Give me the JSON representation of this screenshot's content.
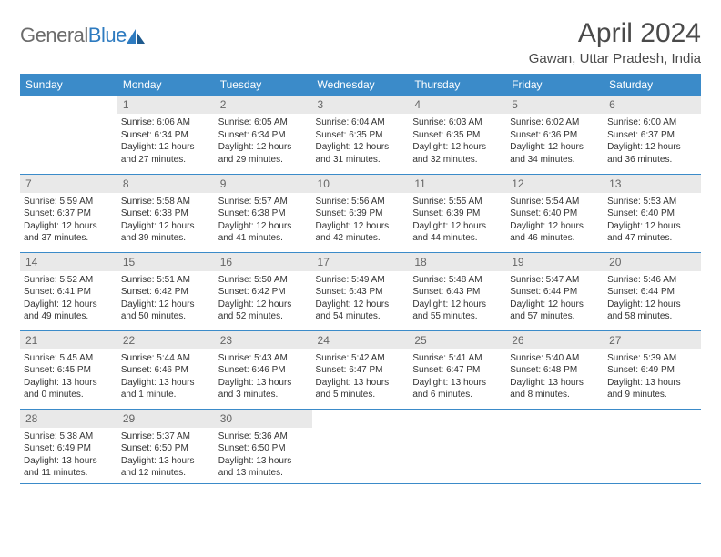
{
  "brand": {
    "name_a": "General",
    "name_b": "Blue"
  },
  "title": "April 2024",
  "location": "Gawan, Uttar Pradesh, India",
  "colors": {
    "header_bg": "#3b8bc9",
    "header_text": "#ffffff",
    "daynum_bg": "#e9e9e9",
    "daynum_text": "#666666",
    "border": "#3b8bc9",
    "logo_gray": "#6b6b6b",
    "logo_blue": "#2e7bc0"
  },
  "fonts": {
    "title_pt": 30,
    "location_pt": 15,
    "header_pt": 12,
    "body_pt": 10,
    "daynum_pt": 12
  },
  "day_headers": [
    "Sunday",
    "Monday",
    "Tuesday",
    "Wednesday",
    "Thursday",
    "Friday",
    "Saturday"
  ],
  "weeks": [
    [
      null,
      {
        "n": "1",
        "sr": "Sunrise: 6:06 AM",
        "ss": "Sunset: 6:34 PM",
        "d1": "Daylight: 12 hours",
        "d2": "and 27 minutes."
      },
      {
        "n": "2",
        "sr": "Sunrise: 6:05 AM",
        "ss": "Sunset: 6:34 PM",
        "d1": "Daylight: 12 hours",
        "d2": "and 29 minutes."
      },
      {
        "n": "3",
        "sr": "Sunrise: 6:04 AM",
        "ss": "Sunset: 6:35 PM",
        "d1": "Daylight: 12 hours",
        "d2": "and 31 minutes."
      },
      {
        "n": "4",
        "sr": "Sunrise: 6:03 AM",
        "ss": "Sunset: 6:35 PM",
        "d1": "Daylight: 12 hours",
        "d2": "and 32 minutes."
      },
      {
        "n": "5",
        "sr": "Sunrise: 6:02 AM",
        "ss": "Sunset: 6:36 PM",
        "d1": "Daylight: 12 hours",
        "d2": "and 34 minutes."
      },
      {
        "n": "6",
        "sr": "Sunrise: 6:00 AM",
        "ss": "Sunset: 6:37 PM",
        "d1": "Daylight: 12 hours",
        "d2": "and 36 minutes."
      }
    ],
    [
      {
        "n": "7",
        "sr": "Sunrise: 5:59 AM",
        "ss": "Sunset: 6:37 PM",
        "d1": "Daylight: 12 hours",
        "d2": "and 37 minutes."
      },
      {
        "n": "8",
        "sr": "Sunrise: 5:58 AM",
        "ss": "Sunset: 6:38 PM",
        "d1": "Daylight: 12 hours",
        "d2": "and 39 minutes."
      },
      {
        "n": "9",
        "sr": "Sunrise: 5:57 AM",
        "ss": "Sunset: 6:38 PM",
        "d1": "Daylight: 12 hours",
        "d2": "and 41 minutes."
      },
      {
        "n": "10",
        "sr": "Sunrise: 5:56 AM",
        "ss": "Sunset: 6:39 PM",
        "d1": "Daylight: 12 hours",
        "d2": "and 42 minutes."
      },
      {
        "n": "11",
        "sr": "Sunrise: 5:55 AM",
        "ss": "Sunset: 6:39 PM",
        "d1": "Daylight: 12 hours",
        "d2": "and 44 minutes."
      },
      {
        "n": "12",
        "sr": "Sunrise: 5:54 AM",
        "ss": "Sunset: 6:40 PM",
        "d1": "Daylight: 12 hours",
        "d2": "and 46 minutes."
      },
      {
        "n": "13",
        "sr": "Sunrise: 5:53 AM",
        "ss": "Sunset: 6:40 PM",
        "d1": "Daylight: 12 hours",
        "d2": "and 47 minutes."
      }
    ],
    [
      {
        "n": "14",
        "sr": "Sunrise: 5:52 AM",
        "ss": "Sunset: 6:41 PM",
        "d1": "Daylight: 12 hours",
        "d2": "and 49 minutes."
      },
      {
        "n": "15",
        "sr": "Sunrise: 5:51 AM",
        "ss": "Sunset: 6:42 PM",
        "d1": "Daylight: 12 hours",
        "d2": "and 50 minutes."
      },
      {
        "n": "16",
        "sr": "Sunrise: 5:50 AM",
        "ss": "Sunset: 6:42 PM",
        "d1": "Daylight: 12 hours",
        "d2": "and 52 minutes."
      },
      {
        "n": "17",
        "sr": "Sunrise: 5:49 AM",
        "ss": "Sunset: 6:43 PM",
        "d1": "Daylight: 12 hours",
        "d2": "and 54 minutes."
      },
      {
        "n": "18",
        "sr": "Sunrise: 5:48 AM",
        "ss": "Sunset: 6:43 PM",
        "d1": "Daylight: 12 hours",
        "d2": "and 55 minutes."
      },
      {
        "n": "19",
        "sr": "Sunrise: 5:47 AM",
        "ss": "Sunset: 6:44 PM",
        "d1": "Daylight: 12 hours",
        "d2": "and 57 minutes."
      },
      {
        "n": "20",
        "sr": "Sunrise: 5:46 AM",
        "ss": "Sunset: 6:44 PM",
        "d1": "Daylight: 12 hours",
        "d2": "and 58 minutes."
      }
    ],
    [
      {
        "n": "21",
        "sr": "Sunrise: 5:45 AM",
        "ss": "Sunset: 6:45 PM",
        "d1": "Daylight: 13 hours",
        "d2": "and 0 minutes."
      },
      {
        "n": "22",
        "sr": "Sunrise: 5:44 AM",
        "ss": "Sunset: 6:46 PM",
        "d1": "Daylight: 13 hours",
        "d2": "and 1 minute."
      },
      {
        "n": "23",
        "sr": "Sunrise: 5:43 AM",
        "ss": "Sunset: 6:46 PM",
        "d1": "Daylight: 13 hours",
        "d2": "and 3 minutes."
      },
      {
        "n": "24",
        "sr": "Sunrise: 5:42 AM",
        "ss": "Sunset: 6:47 PM",
        "d1": "Daylight: 13 hours",
        "d2": "and 5 minutes."
      },
      {
        "n": "25",
        "sr": "Sunrise: 5:41 AM",
        "ss": "Sunset: 6:47 PM",
        "d1": "Daylight: 13 hours",
        "d2": "and 6 minutes."
      },
      {
        "n": "26",
        "sr": "Sunrise: 5:40 AM",
        "ss": "Sunset: 6:48 PM",
        "d1": "Daylight: 13 hours",
        "d2": "and 8 minutes."
      },
      {
        "n": "27",
        "sr": "Sunrise: 5:39 AM",
        "ss": "Sunset: 6:49 PM",
        "d1": "Daylight: 13 hours",
        "d2": "and 9 minutes."
      }
    ],
    [
      {
        "n": "28",
        "sr": "Sunrise: 5:38 AM",
        "ss": "Sunset: 6:49 PM",
        "d1": "Daylight: 13 hours",
        "d2": "and 11 minutes."
      },
      {
        "n": "29",
        "sr": "Sunrise: 5:37 AM",
        "ss": "Sunset: 6:50 PM",
        "d1": "Daylight: 13 hours",
        "d2": "and 12 minutes."
      },
      {
        "n": "30",
        "sr": "Sunrise: 5:36 AM",
        "ss": "Sunset: 6:50 PM",
        "d1": "Daylight: 13 hours",
        "d2": "and 13 minutes."
      },
      null,
      null,
      null,
      null
    ]
  ]
}
